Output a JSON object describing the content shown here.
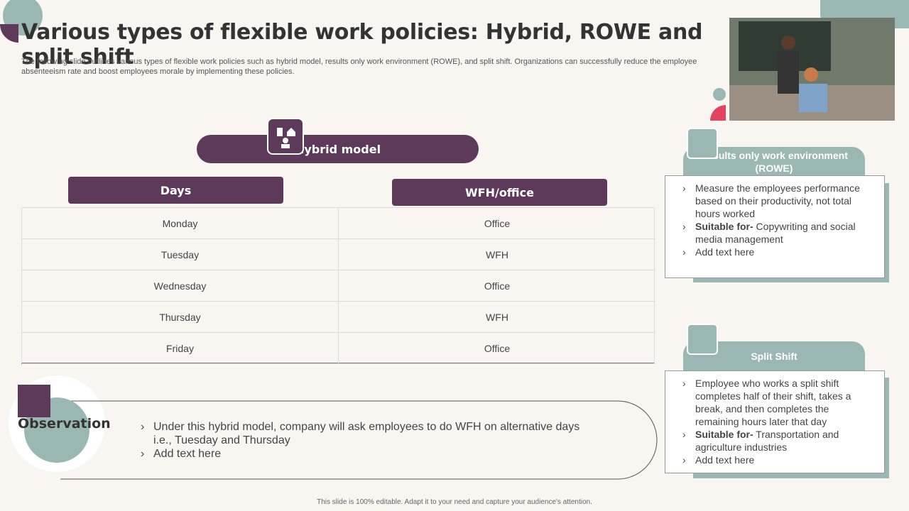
{
  "header": {
    "title": "Various types of flexible work policies: Hybrid, ROWE and split shift",
    "subtitle": "The following slide outlines various types of flexible work policies such as hybrid model, results only work environment (ROWE),  and split shift. Organizations can successfully reduce the employee absenteeism rate and boost employees morale by implementing these policies."
  },
  "hybrid": {
    "heading": "Hybrid model",
    "columns": [
      "Days",
      "WFH/office"
    ],
    "rows": [
      [
        "Monday",
        "Office"
      ],
      [
        "Tuesday",
        "WFH"
      ],
      [
        "Wednesday",
        "Office"
      ],
      [
        "Thursday",
        "WFH"
      ],
      [
        "Friday",
        "Office"
      ]
    ]
  },
  "observation": {
    "label": "Observation",
    "bullets": [
      "Under this hybrid model, company will ask employees to do WFH on alternative days i.e., Tuesday and Thursday",
      "Add text here"
    ]
  },
  "rowe": {
    "title": "Results only work environment (ROWE)",
    "bullets": [
      {
        "text": "Measure the employees performance based on their productivity, not total hours worked"
      },
      {
        "bold": "Suitable for-",
        "text": " Copywriting and social media management"
      },
      {
        "text": "Add text here"
      }
    ]
  },
  "split": {
    "title": "Split Shift",
    "bullets": [
      {
        "text": "Employee who works a split shift completes half of their shift, takes a break, and then completes the remaining hours later that day"
      },
      {
        "bold": "Suitable for-",
        "text": " Transportation and agriculture industries"
      },
      {
        "text": "Add text here"
      }
    ]
  },
  "footer": "This slide is 100% editable.  Adapt it to your need and capture your audience's attention."
}
